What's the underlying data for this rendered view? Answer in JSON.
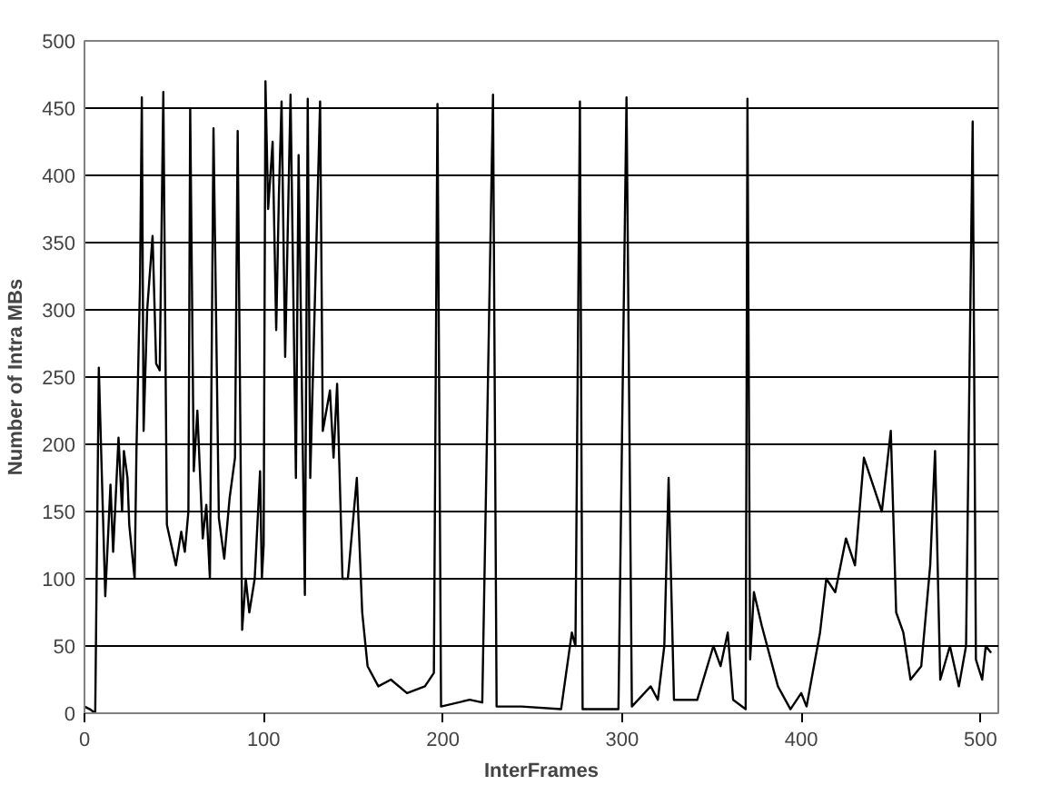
{
  "chart_data": {
    "type": "line",
    "xlabel": "InterFrames",
    "ylabel": "Number of Intra MBs",
    "xlim": [
      0,
      510
    ],
    "ylim": [
      0,
      500
    ],
    "xticks": [
      0,
      100,
      200,
      300,
      400,
      500
    ],
    "yticks": [
      0,
      50,
      100,
      150,
      200,
      250,
      300,
      350,
      400,
      450,
      500
    ],
    "grid": "y",
    "marker": "none",
    "line_style": "solid",
    "series": [
      {
        "color": "#000000",
        "x": [
          0,
          3,
          6,
          8,
          11.6,
          14.5,
          16,
          19,
          21,
          22,
          24,
          25,
          28,
          29,
          31,
          32,
          33,
          35,
          38,
          40,
          42,
          44,
          46,
          51,
          54,
          56,
          58,
          59,
          61,
          63,
          66,
          68,
          70,
          72,
          75,
          78,
          81,
          84,
          85.5,
          88,
          90,
          92,
          95,
          98,
          99,
          100,
          101,
          102.5,
          105,
          107,
          108.5,
          110,
          112,
          115,
          118,
          119.5,
          123,
          124.6,
          126,
          131.5,
          133,
          137,
          139,
          141,
          144,
          147,
          152,
          155,
          158,
          164,
          171,
          180,
          190,
          195,
          197,
          199,
          215,
          222,
          228,
          230,
          244,
          266,
          272,
          274,
          276.5,
          278,
          298,
          302.5,
          305.5,
          316,
          320,
          323.6,
          326,
          329,
          342,
          351,
          355,
          359,
          362,
          369,
          370,
          371.5,
          373.6,
          378,
          387,
          394,
          400,
          403,
          410.5,
          414,
          419,
          425,
          430,
          435,
          440,
          445,
          450,
          453,
          457,
          461,
          467,
          472,
          474.7,
          477.6,
          483,
          488,
          492,
          495.7,
          497.5,
          501,
          503,
          506
        ],
        "values": [
          5,
          3,
          0,
          257,
          87,
          170,
          120,
          205,
          150,
          195,
          175,
          140,
          100,
          195,
          320,
          458,
          210,
          300,
          355,
          260,
          255,
          462,
          140,
          110,
          135,
          120,
          150,
          450,
          180,
          225,
          130,
          155,
          100,
          435,
          145,
          115,
          160,
          190,
          433,
          62,
          100,
          75,
          100,
          180,
          100,
          125,
          470,
          375,
          425,
          285,
          385,
          455,
          265,
          460,
          175,
          415,
          88,
          457,
          175,
          455,
          210,
          240,
          190,
          245,
          100,
          100,
          175,
          75,
          35,
          20,
          25,
          15,
          20,
          30,
          453,
          5,
          10,
          8,
          460,
          5,
          5,
          3,
          60,
          50,
          455,
          3,
          3,
          458,
          5,
          20,
          10,
          50,
          175,
          10,
          10,
          50,
          35,
          60,
          10,
          3,
          457,
          40,
          90,
          65,
          20,
          3,
          15,
          5,
          60,
          100,
          90,
          130,
          110,
          190,
          170,
          150,
          210,
          75,
          60,
          25,
          35,
          110,
          195,
          25,
          50,
          20,
          50,
          440,
          40,
          25,
          50,
          45
        ]
      }
    ]
  }
}
